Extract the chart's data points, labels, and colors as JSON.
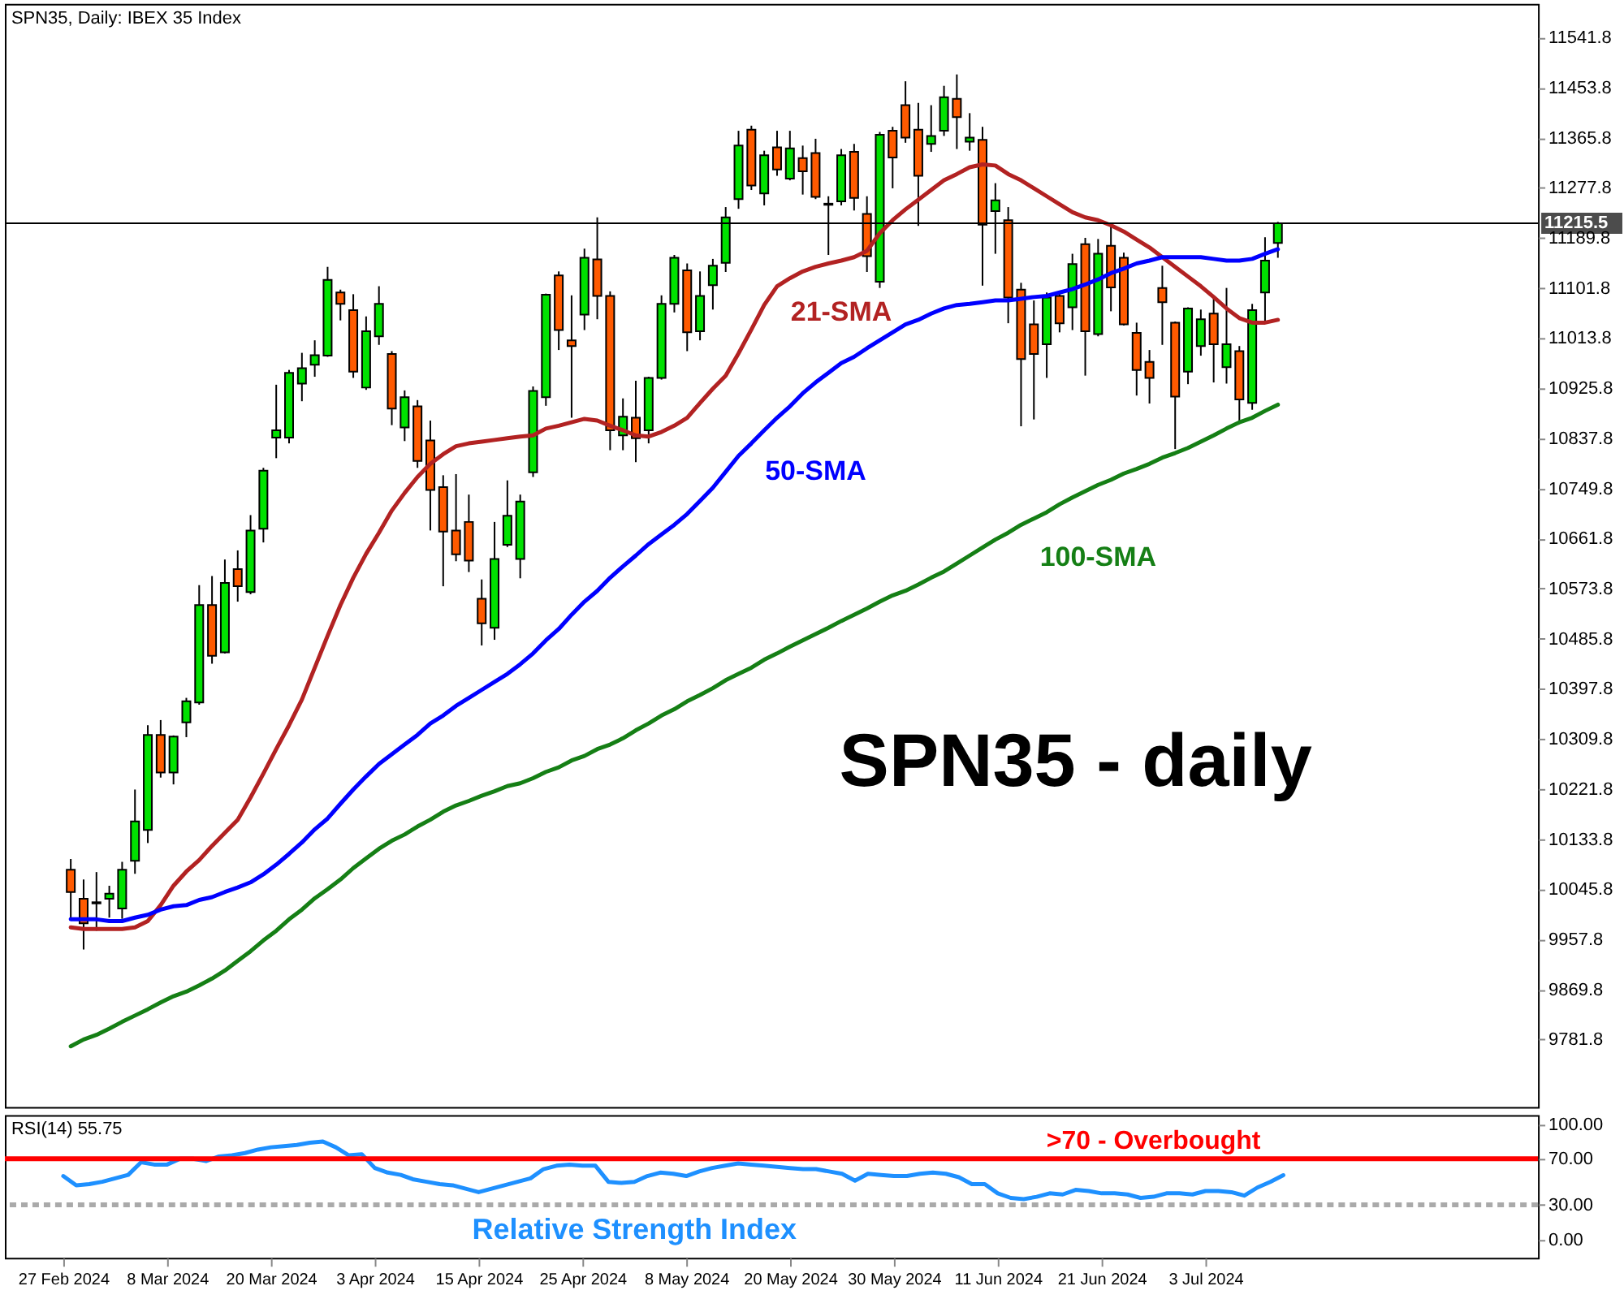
{
  "chart_data": [
    {
      "type": "candlestick",
      "title": "SPN35, Daily:  IBEX 35 Index",
      "categories": [
        null,
        null,
        null,
        null,
        null,
        null,
        null,
        null,
        null,
        null,
        null,
        null,
        null,
        null,
        null,
        null,
        null,
        null,
        null,
        null,
        null,
        null,
        null,
        null,
        null,
        null,
        null,
        null,
        null,
        null,
        null,
        null,
        null,
        null,
        null,
        null,
        null,
        null,
        null,
        null,
        null,
        null,
        null,
        null,
        null,
        null,
        null,
        null,
        null,
        null,
        null,
        null,
        null,
        null,
        null,
        null,
        null,
        null,
        null,
        null,
        null,
        null,
        null,
        null,
        null,
        null,
        null,
        null,
        null,
        null,
        null,
        null,
        null,
        null,
        null,
        null,
        null,
        null,
        null,
        null,
        null,
        null,
        null,
        null,
        null,
        null,
        null,
        null,
        null,
        null,
        null,
        null,
        null,
        null,
        null
      ],
      "ohlc": [
        [
          10080,
          10099,
          9996,
          10041
        ],
        [
          10029,
          10063,
          9940,
          9986
        ],
        [
          10023,
          10076,
          9973,
          10021
        ],
        [
          10029,
          10052,
          9996,
          10038
        ],
        [
          10012,
          10094,
          9994,
          10080
        ],
        [
          10096,
          10221,
          10073,
          10165
        ],
        [
          10150,
          10334,
          10127,
          10317
        ],
        [
          10317,
          10343,
          10242,
          10251
        ],
        [
          10251,
          10316,
          10230,
          10314
        ],
        [
          10339,
          10382,
          10313,
          10376
        ],
        [
          10374,
          10580,
          10370,
          10545
        ],
        [
          10545,
          10596,
          10442,
          10456
        ],
        [
          10462,
          10625,
          10460,
          10584
        ],
        [
          10608,
          10641,
          10551,
          10578
        ],
        [
          10568,
          10703,
          10564,
          10676
        ],
        [
          10679,
          10786,
          10655,
          10781
        ],
        [
          10839,
          10932,
          10803,
          10852
        ],
        [
          10839,
          10958,
          10829,
          10953
        ],
        [
          10934,
          10988,
          10903,
          10961
        ],
        [
          10967,
          11010,
          10946,
          10984
        ],
        [
          10983,
          11139,
          10981,
          11116
        ],
        [
          11094,
          11099,
          11045,
          11074
        ],
        [
          11063,
          11091,
          10944,
          10955
        ],
        [
          10927,
          11052,
          10923,
          11026
        ],
        [
          11017,
          11105,
          11002,
          11074
        ],
        [
          10986,
          10991,
          10861,
          10890
        ],
        [
          10857,
          10922,
          10833,
          10910
        ],
        [
          10894,
          10905,
          10786,
          10798
        ],
        [
          10834,
          10869,
          10676,
          10747
        ],
        [
          10752,
          10773,
          10578,
          10674
        ],
        [
          10676,
          10775,
          10622,
          10634
        ],
        [
          10691,
          10739,
          10603,
          10623
        ],
        [
          10556,
          10590,
          10474,
          10513
        ],
        [
          10505,
          10691,
          10484,
          10626
        ],
        [
          10651,
          10764,
          10647,
          10702
        ],
        [
          10626,
          10739,
          10592,
          10727
        ],
        [
          10778,
          10929,
          10770,
          10921
        ],
        [
          10910,
          11092,
          10895,
          11090
        ],
        [
          11124,
          11131,
          10993,
          11028
        ],
        [
          11010,
          11089,
          10874,
          11000
        ],
        [
          11055,
          11171,
          11028,
          11155
        ],
        [
          11152,
          11226,
          11047,
          11088
        ],
        [
          11088,
          11096,
          10817,
          10852
        ],
        [
          10843,
          10908,
          10817,
          10876
        ],
        [
          10874,
          10939,
          10796,
          10838
        ],
        [
          10852,
          10946,
          10829,
          10944
        ],
        [
          10944,
          11089,
          10941,
          11074
        ],
        [
          11074,
          11160,
          11059,
          11155
        ],
        [
          11133,
          11145,
          10991,
          11024
        ],
        [
          11026,
          11131,
          11010,
          11088
        ],
        [
          11107,
          11153,
          11064,
          11141
        ],
        [
          11146,
          11244,
          11130,
          11226
        ],
        [
          11258,
          11378,
          11241,
          11352
        ],
        [
          11380,
          11387,
          11274,
          11282
        ],
        [
          11268,
          11343,
          11247,
          11335
        ],
        [
          11349,
          11378,
          11299,
          11310
        ],
        [
          11294,
          11378,
          11291,
          11347
        ],
        [
          11330,
          11352,
          11266,
          11307
        ],
        [
          11339,
          11364,
          11258,
          11262
        ],
        [
          11250,
          11263,
          11160,
          11248
        ],
        [
          11254,
          11346,
          11247,
          11335
        ],
        [
          11341,
          11355,
          11238,
          11260
        ],
        [
          11232,
          11263,
          11130,
          11158
        ],
        [
          11113,
          11376,
          11102,
          11371
        ],
        [
          11378,
          11385,
          11277,
          11331
        ],
        [
          11423,
          11465,
          11357,
          11366
        ],
        [
          11380,
          11427,
          11211,
          11299
        ],
        [
          11355,
          11423,
          11341,
          11369
        ],
        [
          11378,
          11457,
          11369,
          11437
        ],
        [
          11434,
          11477,
          11346,
          11402
        ],
        [
          11359,
          11409,
          11343,
          11366
        ],
        [
          11362,
          11385,
          11106,
          11213
        ],
        [
          11237,
          11286,
          11162,
          11256
        ],
        [
          11221,
          11244,
          11040,
          11085
        ],
        [
          11099,
          11111,
          10859,
          10977
        ],
        [
          11038,
          11080,
          10871,
          10986
        ],
        [
          11003,
          11094,
          10944,
          11085
        ],
        [
          11088,
          11094,
          11024,
          11040
        ],
        [
          11068,
          11162,
          11028,
          11144
        ],
        [
          11179,
          11190,
          10948,
          11026
        ],
        [
          11021,
          11188,
          11017,
          11162
        ],
        [
          11176,
          11211,
          11061,
          11103
        ],
        [
          11155,
          11164,
          11036,
          11038
        ],
        [
          11023,
          11041,
          10913,
          10958
        ],
        [
          10972,
          10993,
          10899,
          10944
        ],
        [
          11102,
          11141,
          11002,
          11077
        ],
        [
          11041,
          11043,
          10819,
          10911
        ],
        [
          10955,
          11068,
          10933,
          11066
        ],
        [
          11000,
          11064,
          10983,
          11047
        ],
        [
          11057,
          11086,
          10936,
          11003
        ],
        [
          10963,
          11102,
          10934,
          11003
        ],
        [
          10991,
          11000,
          10864,
          10906
        ],
        [
          10900,
          11074,
          10888,
          11063
        ],
        [
          11094,
          11191,
          11040,
          11150
        ],
        [
          11181,
          11218,
          11155,
          11215.5
        ]
      ],
      "colors": [
        "#ff5a00",
        "#ff5a00",
        "#ff5a00",
        "#00e100",
        "#00e100",
        "#00e100",
        "#00e100",
        "#ff5a00",
        "#00e100",
        "#00e100",
        "#00e100",
        "#ff5a00",
        "#00e100",
        "#ff5a00",
        "#00e100",
        "#00e100",
        "#00e100",
        "#00e100",
        "#00e100",
        "#00e100",
        "#00e100",
        "#ff5a00",
        "#ff5a00",
        "#00e100",
        "#00e100",
        "#ff5a00",
        "#00e100",
        "#ff5a00",
        "#ff5a00",
        "#ff5a00",
        "#ff5a00",
        "#ff5a00",
        "#ff5a00",
        "#00e100",
        "#00e100",
        "#00e100",
        "#00e100",
        "#00e100",
        "#ff5a00",
        "#ff5a00",
        "#00e100",
        "#ff5a00",
        "#ff5a00",
        "#00e100",
        "#ff5a00",
        "#00e100",
        "#00e100",
        "#00e100",
        "#ff5a00",
        "#00e100",
        "#00e100",
        "#00e100",
        "#00e100",
        "#ff5a00",
        "#00e100",
        "#ff5a00",
        "#00e100",
        "#ff5a00",
        "#ff5a00",
        "#ff5a00",
        "#00e100",
        "#ff5a00",
        "#ff5a00",
        "#00e100",
        "#ff5a00",
        "#ff5a00",
        "#ff5a00",
        "#00e100",
        "#00e100",
        "#ff5a00",
        "#00e100",
        "#ff5a00",
        "#00e100",
        "#ff5a00",
        "#ff5a00",
        "#ff5a00",
        "#00e100",
        "#ff5a00",
        "#00e100",
        "#ff5a00",
        "#00e100",
        "#ff5a00",
        "#ff5a00",
        "#ff5a00",
        "#ff5a00",
        "#ff5a00",
        "#ff5a00",
        "#00e100",
        "#00e100",
        "#ff5a00",
        "#00e100",
        "#ff5a00",
        "#00e100",
        "#00e100",
        "#00e100"
      ],
      "series": [
        {
          "name": "21-SMA",
          "type": "line",
          "color": "#b22222",
          "values": [
            9979,
            9976,
            9976,
            9976,
            9976,
            9979,
            9990,
            10018,
            10052,
            10077,
            10097,
            10122,
            10145,
            10168,
            10207,
            10249,
            10292,
            10334,
            10379,
            10435,
            10491,
            10545,
            10593,
            10635,
            10672,
            10711,
            10742,
            10770,
            10793,
            10810,
            10824,
            10829,
            10832,
            10835,
            10838,
            10841,
            10843,
            10855,
            10860,
            10866,
            10872,
            10869,
            10860,
            10852,
            10843,
            10841,
            10849,
            10860,
            10874,
            10900,
            10925,
            10948,
            10987,
            11029,
            11072,
            11105,
            11119,
            11131,
            11139,
            11145,
            11150,
            11156,
            11167,
            11198,
            11221,
            11240,
            11257,
            11274,
            11291,
            11302,
            11314,
            11319,
            11317,
            11302,
            11291,
            11277,
            11263,
            11249,
            11235,
            11226,
            11221,
            11212,
            11201,
            11187,
            11173,
            11156,
            11139,
            11122,
            11105,
            11086,
            11066,
            11049,
            11041,
            11041,
            11046
          ]
        },
        {
          "name": "50-SMA",
          "type": "line",
          "color": "#0000ff",
          "values": [
            9993,
            9993,
            9993,
            9990,
            9990,
            9996,
            10001,
            10010,
            10016,
            10018,
            10027,
            10032,
            10041,
            10049,
            10058,
            10072,
            10089,
            10108,
            10128,
            10151,
            10170,
            10196,
            10221,
            10244,
            10266,
            10283,
            10300,
            10317,
            10337,
            10351,
            10368,
            10382,
            10396,
            10410,
            10424,
            10441,
            10460,
            10483,
            10503,
            10528,
            10551,
            10570,
            10593,
            10613,
            10632,
            10652,
            10669,
            10686,
            10705,
            10728,
            10751,
            10779,
            10807,
            10829,
            10852,
            10874,
            10894,
            10917,
            10936,
            10953,
            10970,
            10981,
            10996,
            11010,
            11024,
            11038,
            11046,
            11057,
            11066,
            11072,
            11074,
            11077,
            11080,
            11080,
            11083,
            11086,
            11088,
            11094,
            11100,
            11108,
            11117,
            11128,
            11136,
            11145,
            11150,
            11156,
            11156,
            11156,
            11156,
            11153,
            11150,
            11150,
            11153,
            11162,
            11170
          ]
        },
        {
          "name": "100-SMA",
          "type": "line",
          "color": "#157f15",
          "values": [
            9770,
            9782,
            9790,
            9801,
            9813,
            9824,
            9835,
            9847,
            9858,
            9866,
            9877,
            9889,
            9903,
            9920,
            9937,
            9956,
            9973,
            9993,
            10010,
            10030,
            10046,
            10063,
            10083,
            10100,
            10117,
            10131,
            10142,
            10156,
            10168,
            10182,
            10193,
            10201,
            10210,
            10218,
            10227,
            10232,
            10241,
            10252,
            10260,
            10272,
            10280,
            10292,
            10300,
            10311,
            10325,
            10337,
            10351,
            10362,
            10376,
            10387,
            10399,
            10413,
            10424,
            10435,
            10449,
            10460,
            10472,
            10483,
            10494,
            10505,
            10517,
            10528,
            10539,
            10551,
            10562,
            10570,
            10581,
            10593,
            10604,
            10618,
            10632,
            10646,
            10660,
            10672,
            10686,
            10697,
            10708,
            10722,
            10734,
            10745,
            10756,
            10765,
            10776,
            10784,
            10793,
            10804,
            10812,
            10821,
            10832,
            10843,
            10855,
            10866,
            10874,
            10886,
            10897
          ]
        }
      ],
      "ylim": [
        9663.5,
        11600.9
      ],
      "yticks": [
        9781.8,
        9869.8,
        9957.8,
        10045.8,
        10133.8,
        10221.8,
        10309.8,
        10397.8,
        10485.8,
        10573.8,
        10661.8,
        10749.8,
        10837.8,
        10925.8,
        11013.8,
        11101.8,
        11189.8,
        11277.8,
        11365.8,
        11453.8,
        11541.8
      ],
      "ref_lines": [
        {
          "axis": "y",
          "value": 11215.5,
          "label": "11215.5",
          "color": "#000000"
        }
      ],
      "annotations": [
        "SPN35 - daily"
      ],
      "tick_labels": "y",
      "legend": false
    },
    {
      "type": "line",
      "title": "RSI(14) 55.75",
      "categories": [
        "27 Feb 2024",
        null,
        null,
        null,
        null,
        null,
        null,
        null,
        "8 Mar 2024",
        null,
        null,
        null,
        null,
        null,
        null,
        null,
        "20 Mar 2024",
        null,
        null,
        null,
        null,
        null,
        null,
        null,
        "3 Apr 2024",
        null,
        null,
        null,
        null,
        null,
        null,
        null,
        "15 Apr 2024",
        null,
        null,
        null,
        null,
        null,
        null,
        null,
        "25 Apr 2024",
        null,
        null,
        null,
        null,
        null,
        null,
        null,
        "8 May 2024",
        null,
        null,
        null,
        null,
        null,
        null,
        null,
        "20 May 2024",
        null,
        null,
        null,
        null,
        null,
        null,
        null,
        "30 May 2024",
        null,
        null,
        null,
        null,
        null,
        null,
        null,
        "11 Jun 2024",
        null,
        null,
        null,
        null,
        null,
        null,
        null,
        "21 Jun 2024",
        null,
        null,
        null,
        null,
        null,
        null,
        null,
        "3 Jul 2024",
        null,
        null,
        null,
        null,
        null,
        null
      ],
      "series": [
        {
          "name": "Relative Strength Index",
          "color": "#1e90ff",
          "values": [
            55,
            47,
            48,
            50,
            53,
            56,
            67,
            65,
            65,
            70,
            70,
            68,
            72,
            73,
            75,
            78,
            80,
            81,
            82,
            84,
            85,
            80,
            73,
            74,
            62,
            58,
            56,
            52,
            50,
            48,
            47,
            44,
            41,
            44,
            47,
            50,
            53,
            61,
            64,
            65,
            64,
            64,
            50,
            49,
            50,
            55,
            58,
            57,
            55,
            59,
            62,
            64,
            66,
            65,
            64,
            63,
            62,
            61,
            61,
            59,
            57,
            51,
            57,
            56,
            55,
            55,
            57,
            58,
            57,
            54,
            48,
            48,
            40,
            36,
            35,
            37,
            40,
            39,
            43,
            42,
            40,
            40,
            39,
            36,
            37,
            40,
            40,
            39,
            42,
            42,
            41,
            38,
            45,
            50,
            55.75
          ]
        }
      ],
      "ylim": [
        -16,
        108
      ],
      "yticks": [
        {
          "value": 100,
          "label": "100.00"
        },
        {
          "value": 70,
          "label": "70.00"
        },
        {
          "value": 30,
          "label": "30.00"
        },
        {
          "value": 0,
          "label": "0.00"
        }
      ],
      "ref_lines": [
        {
          "axis": "y",
          "value": 70,
          "label": ">70 - Overbought",
          "color": "#ff0000"
        },
        {
          "axis": "y",
          "value": 30,
          "color": "#aaaaaa",
          "line_style": "dashed"
        }
      ],
      "legend": false
    }
  ]
}
